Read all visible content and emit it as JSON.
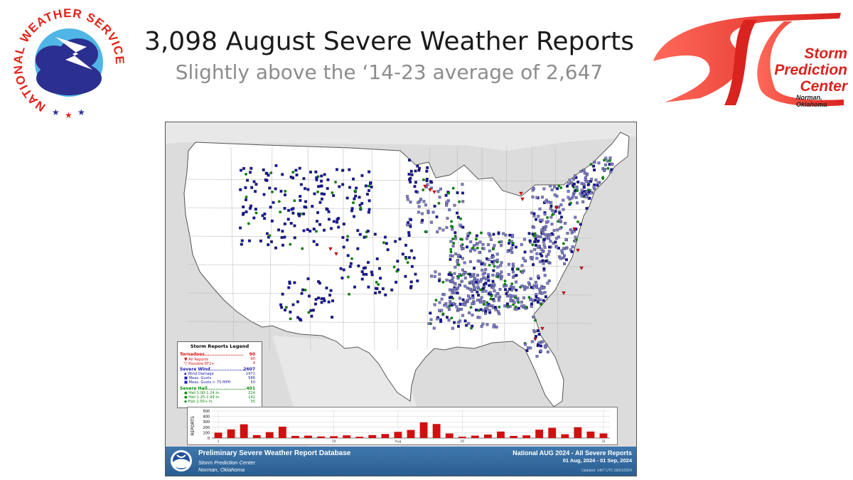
{
  "header": {
    "headline": "3,098 August Severe Weather Reports",
    "subheadline": "Slightly above the ‘14-23 average of 2,647"
  },
  "nws_logo": {
    "icon": "nws-seal-icon",
    "text": "NATIONAL WEATHER SERVICE",
    "colors": {
      "ring_text": "#e2231a",
      "center": "#2b2f8f",
      "sky": "#4fb6e6"
    }
  },
  "spc_logo": {
    "icon": "spc-swoosh-logo",
    "name_line1": "Storm",
    "name_line2": "Prediction",
    "name_line3": "Center",
    "location": "Norman, Oklahoma",
    "color": "#d9231f"
  },
  "legend": {
    "title": "Storm Reports Legend",
    "tornadoes": {
      "label": "Tornadoes",
      "count": "90",
      "rows": [
        {
          "label": "All Reports",
          "value": "90"
        },
        {
          "label": "Possible EF2+",
          "value": "4"
        }
      ]
    },
    "wind": {
      "label": "Severe Wind",
      "count": "2607",
      "rows": [
        {
          "label": "Wind Damage",
          "value": "1971"
        },
        {
          "label": "Meas. Gusts",
          "value": "586"
        },
        {
          "label": "Meas. Gusts > 75 MPH",
          "value": "50"
        }
      ]
    },
    "hail": {
      "label": "Severe Hail",
      "count": "401",
      "rows": [
        {
          "label": "Hail 1.00-1.24 in.",
          "value": "224"
        },
        {
          "label": "Hail 1.25-1.99 in.",
          "value": "142"
        },
        {
          "label": "Hail 2.00+ in.",
          "value": "35"
        }
      ]
    },
    "colors": {
      "tornado": "#d01010",
      "wind": "#2020b0",
      "hail": "#0a8a0a"
    }
  },
  "chart_data": {
    "type": "bar",
    "ylabel": "REPORTS",
    "ylim": [
      0,
      500
    ],
    "yticks": [
      "500",
      "400",
      "300",
      "200",
      "100",
      "0"
    ],
    "xticks": [
      "1",
      "10",
      "Aug",
      "20",
      "31"
    ],
    "x": [
      1,
      2,
      3,
      4,
      5,
      6,
      7,
      8,
      9,
      10,
      11,
      12,
      13,
      14,
      15,
      16,
      17,
      18,
      19,
      20,
      21,
      22,
      23,
      24,
      25,
      26,
      27,
      28,
      29,
      30,
      31
    ],
    "values": [
      100,
      160,
      255,
      55,
      110,
      210,
      40,
      45,
      30,
      35,
      50,
      25,
      55,
      75,
      115,
      150,
      290,
      260,
      85,
      25,
      45,
      65,
      120,
      40,
      50,
      155,
      190,
      70,
      200,
      120,
      85
    ],
    "bar_color": "#d01010",
    "grid": true
  },
  "footer": {
    "database": "Preliminary Severe Weather Report Database",
    "org": "Storm Prediction Center",
    "location": "Norman, Oklahoma",
    "title": "National AUG 2024 - All Severe Reports",
    "range": "01 Aug, 2024 - 01 Sep, 2024",
    "updated": "Updated: 1407 UTC 09/01/2024",
    "logo_icon": "noaa-logo-icon"
  },
  "map": {
    "land_color": "#ffffff",
    "water_color": "#dcdcdc",
    "border_color": "#555555"
  }
}
